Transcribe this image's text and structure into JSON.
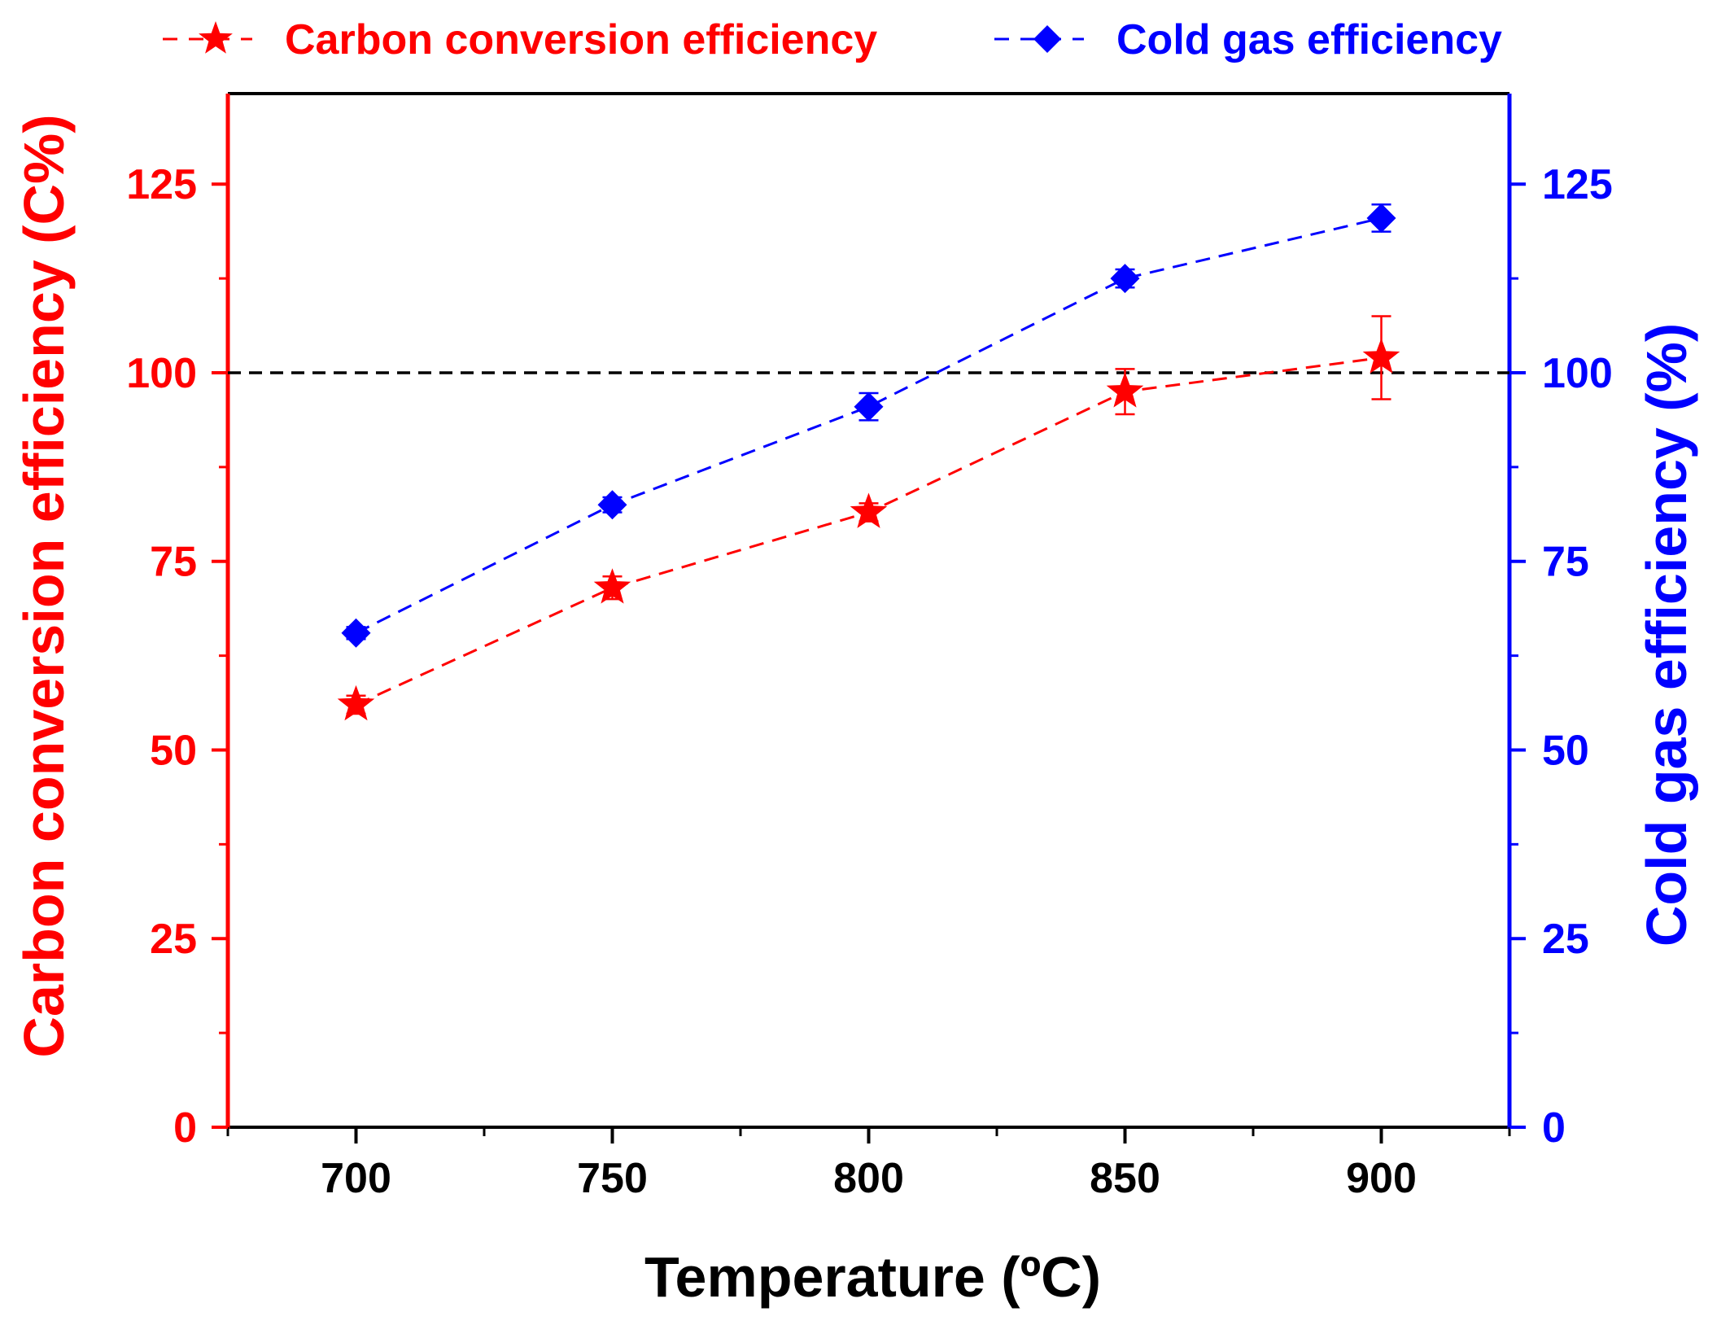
{
  "chart_data": {
    "type": "line",
    "title": "",
    "x": [
      700,
      750,
      800,
      850,
      900
    ],
    "x_tick_labels": [
      "700",
      "750",
      "800",
      "850",
      "900"
    ],
    "xlim": [
      675,
      925
    ],
    "xlabel": "Temperature (ºC)",
    "y_left": {
      "label": "Carbon conversion efficiency (C%)",
      "lim": [
        0,
        137
      ],
      "ticks": [
        0,
        25,
        50,
        75,
        100,
        125
      ],
      "tick_labels": [
        "0",
        "25",
        "50",
        "75",
        "100",
        "125"
      ],
      "color": "#ff0000"
    },
    "y_right": {
      "label": "Cold gas efficiency (%)",
      "lim": [
        0,
        137
      ],
      "ticks": [
        0,
        25,
        50,
        75,
        100,
        125
      ],
      "tick_labels": [
        "0",
        "25",
        "50",
        "75",
        "100",
        "125"
      ],
      "color": "#0000ff"
    },
    "series": [
      {
        "name": "Carbon conversion efficiency",
        "axis": "left",
        "marker": "star",
        "line_style": "dashed",
        "color": "#ff0000",
        "values": [
          56,
          71.5,
          81.5,
          97.5,
          102
        ],
        "errors": [
          1.2,
          1.5,
          1.2,
          3.0,
          5.5
        ]
      },
      {
        "name": "Cold gas efficiency",
        "axis": "right",
        "marker": "diamond",
        "line_style": "dashed",
        "color": "#0000ff",
        "values": [
          65.5,
          82.5,
          95.5,
          112.5,
          120.5
        ],
        "errors": [
          0.8,
          1.0,
          1.8,
          1.2,
          1.8
        ]
      }
    ],
    "reference_line": {
      "y": 100,
      "style": "dashed",
      "color": "#000000"
    },
    "grid": false,
    "legend_position": "top"
  }
}
